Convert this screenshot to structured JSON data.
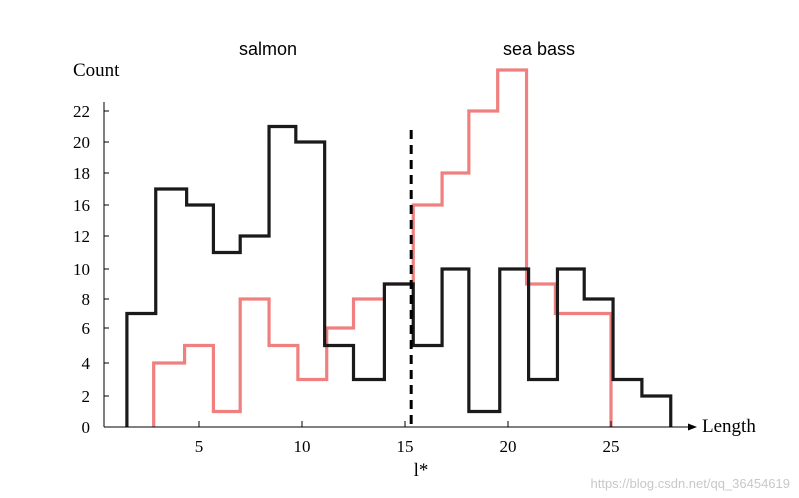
{
  "chart_data": {
    "type": "line",
    "step": true,
    "xlabel": "Length",
    "ylabel": "Count",
    "threshold_label": "l*",
    "threshold_x": 15.3,
    "x_ticks": [
      5,
      10,
      15,
      20,
      25
    ],
    "y_ticks": [
      0,
      2,
      4,
      6,
      8,
      10,
      12,
      16,
      18,
      20,
      22
    ],
    "series": [
      {
        "name": "salmon",
        "color": "#1a1a1a",
        "edges": [
          1.5,
          2.9,
          4.4,
          5.7,
          7.0,
          8.4,
          9.7,
          11.1,
          12.5,
          14.0,
          15.4,
          16.8,
          18.1,
          19.6,
          21.0,
          22.4,
          23.7,
          25.1,
          26.5,
          27.9
        ],
        "counts": [
          7,
          17,
          16,
          11,
          12,
          21,
          20,
          5,
          3,
          9,
          5,
          10,
          1,
          10,
          3,
          10,
          8,
          3,
          2
        ]
      },
      {
        "name": "sea bass",
        "color": "#f08080",
        "edges": [
          2.8,
          4.3,
          5.7,
          7.0,
          8.4,
          9.8,
          11.2,
          12.5,
          14.0,
          15.4,
          16.8,
          18.1,
          19.5,
          20.9,
          22.3,
          23.7,
          25.0
        ],
        "counts": [
          4,
          5,
          1,
          8,
          5,
          3,
          6,
          8,
          9,
          16,
          18,
          22,
          24,
          9,
          7,
          7
        ]
      }
    ]
  },
  "watermark": "https://blog.csdn.net/qq_36454619"
}
